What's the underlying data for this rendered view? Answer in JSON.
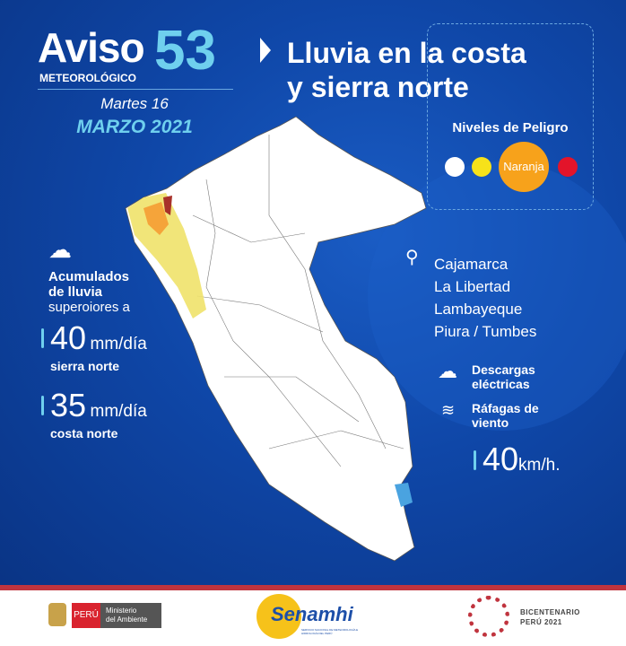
{
  "header": {
    "aviso": "Aviso",
    "numero": "53",
    "meteorologico": "METEOROLÓGICO",
    "fecha_dia": "Martes 16",
    "fecha_mes": "MARZO 2021"
  },
  "title": {
    "line1": "Lluvia en la costa",
    "line2": "y sierra norte"
  },
  "niveles": {
    "label": "Niveles de Peligro",
    "active": "Naranja",
    "colors": [
      "#ffffff",
      "#f6e21a",
      "#f7a21b",
      "#e3142a"
    ]
  },
  "lluvia": {
    "icon": "cloud-rain-icon",
    "line1": "Acumulados",
    "line2": "de lluvia",
    "line3": "superoiores a",
    "sierra_value": "40",
    "sierra_unit": "mm/día",
    "sierra_label": "sierra norte",
    "costa_value": "35",
    "costa_unit": "mm/día",
    "costa_label": "costa norte"
  },
  "regiones": {
    "icon": "location-pin-icon",
    "items": [
      "Cajamarca",
      "La Libertad",
      "Lambayeque",
      "Piura / Tumbes"
    ]
  },
  "otros": {
    "descargas": "Descargas eléctricas",
    "rafagas": "Ráfagas de viento",
    "viento_value": "40",
    "viento_unit": "km/h."
  },
  "footer": {
    "peru": "PERÚ",
    "ministerio1": "Ministerio",
    "ministerio2": "del Ambiente",
    "senamhi": "Senamhi",
    "senamhi_sub": "SERVICIO NACIONAL DE METEOROLOGÍA E HIDROLOGÍA DEL PERÚ",
    "bicentenario1": "BICENTENARIO",
    "bicentenario2": "PERÚ 2021",
    "brand_red": "#c0343e"
  }
}
